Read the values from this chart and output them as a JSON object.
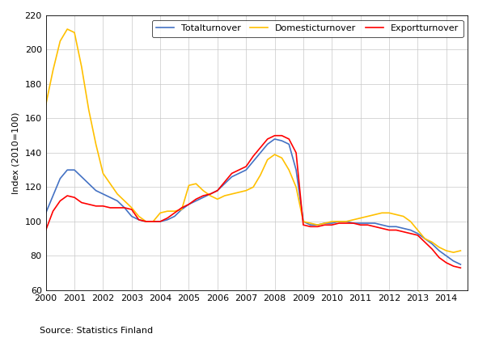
{
  "title": "",
  "ylabel": "Index (2010=100)",
  "source_text": "Source: Statistics Finland",
  "ylim": [
    60,
    220
  ],
  "yticks": [
    60,
    80,
    100,
    120,
    140,
    160,
    180,
    200,
    220
  ],
  "legend_labels": [
    "Totalturnover",
    "Domesticturnover",
    "Exportturnover"
  ],
  "colors": [
    "#4472C4",
    "#FFC000",
    "#FF0000"
  ],
  "total_turnover": {
    "x": [
      2000.0,
      2000.25,
      2000.5,
      2000.75,
      2001.0,
      2001.25,
      2001.5,
      2001.75,
      2002.0,
      2002.25,
      2002.5,
      2002.75,
      2003.0,
      2003.25,
      2003.5,
      2003.75,
      2004.0,
      2004.25,
      2004.5,
      2004.75,
      2005.0,
      2005.25,
      2005.5,
      2005.75,
      2006.0,
      2006.25,
      2006.5,
      2006.75,
      2007.0,
      2007.25,
      2007.5,
      2007.75,
      2008.0,
      2008.25,
      2008.5,
      2008.75,
      2009.0,
      2009.25,
      2009.5,
      2009.75,
      2010.0,
      2010.25,
      2010.5,
      2010.75,
      2011.0,
      2011.25,
      2011.5,
      2011.75,
      2012.0,
      2012.25,
      2012.5,
      2012.75,
      2013.0,
      2013.25,
      2013.5,
      2013.75,
      2014.0,
      2014.25,
      2014.5
    ],
    "y": [
      105,
      115,
      125,
      130,
      130,
      126,
      122,
      118,
      116,
      114,
      112,
      108,
      103,
      101,
      100,
      100,
      100,
      101,
      103,
      107,
      110,
      112,
      114,
      116,
      118,
      122,
      126,
      128,
      130,
      135,
      140,
      145,
      148,
      147,
      145,
      130,
      100,
      98,
      98,
      99,
      99,
      100,
      100,
      99,
      99,
      99,
      99,
      98,
      97,
      97,
      96,
      95,
      93,
      90,
      87,
      83,
      80,
      77,
      75
    ]
  },
  "domestic_turnover": {
    "x": [
      2000.0,
      2000.25,
      2000.5,
      2000.75,
      2001.0,
      2001.25,
      2001.5,
      2001.75,
      2002.0,
      2002.25,
      2002.5,
      2002.75,
      2003.0,
      2003.25,
      2003.5,
      2003.75,
      2004.0,
      2004.25,
      2004.5,
      2004.75,
      2005.0,
      2005.25,
      2005.5,
      2005.75,
      2006.0,
      2006.25,
      2006.5,
      2006.75,
      2007.0,
      2007.25,
      2007.5,
      2007.75,
      2008.0,
      2008.25,
      2008.5,
      2008.75,
      2009.0,
      2009.25,
      2009.5,
      2009.75,
      2010.0,
      2010.25,
      2010.5,
      2010.75,
      2011.0,
      2011.25,
      2011.5,
      2011.75,
      2012.0,
      2012.25,
      2012.5,
      2012.75,
      2013.0,
      2013.25,
      2013.5,
      2013.75,
      2014.0,
      2014.25,
      2014.5
    ],
    "y": [
      168,
      188,
      205,
      212,
      210,
      190,
      165,
      145,
      128,
      122,
      116,
      112,
      108,
      103,
      100,
      100,
      105,
      106,
      106,
      107,
      121,
      122,
      118,
      115,
      113,
      115,
      116,
      117,
      118,
      120,
      127,
      136,
      139,
      137,
      130,
      120,
      100,
      99,
      98,
      99,
      100,
      100,
      100,
      101,
      102,
      103,
      104,
      105,
      105,
      104,
      103,
      100,
      95,
      90,
      88,
      85,
      83,
      82,
      83
    ]
  },
  "export_turnover": {
    "x": [
      2000.0,
      2000.25,
      2000.5,
      2000.75,
      2001.0,
      2001.25,
      2001.5,
      2001.75,
      2002.0,
      2002.25,
      2002.5,
      2002.75,
      2003.0,
      2003.25,
      2003.5,
      2003.75,
      2004.0,
      2004.25,
      2004.5,
      2004.75,
      2005.0,
      2005.25,
      2005.5,
      2005.75,
      2006.0,
      2006.25,
      2006.5,
      2006.75,
      2007.0,
      2007.25,
      2007.5,
      2007.75,
      2008.0,
      2008.25,
      2008.5,
      2008.75,
      2009.0,
      2009.25,
      2009.5,
      2009.75,
      2010.0,
      2010.25,
      2010.5,
      2010.75,
      2011.0,
      2011.25,
      2011.5,
      2011.75,
      2012.0,
      2012.25,
      2012.5,
      2012.75,
      2013.0,
      2013.25,
      2013.5,
      2013.75,
      2014.0,
      2014.25,
      2014.5
    ],
    "y": [
      95,
      106,
      112,
      115,
      114,
      111,
      110,
      109,
      109,
      108,
      108,
      108,
      107,
      101,
      100,
      100,
      100,
      102,
      105,
      108,
      110,
      113,
      115,
      116,
      118,
      123,
      128,
      130,
      132,
      138,
      143,
      148,
      150,
      150,
      148,
      140,
      98,
      97,
      97,
      98,
      98,
      99,
      99,
      99,
      98,
      98,
      97,
      96,
      95,
      95,
      94,
      93,
      92,
      88,
      84,
      79,
      76,
      74,
      73
    ]
  },
  "xlim": [
    2000,
    2014.75
  ],
  "xticks": [
    2000,
    2001,
    2002,
    2003,
    2004,
    2005,
    2006,
    2007,
    2008,
    2009,
    2010,
    2011,
    2012,
    2013,
    2014
  ]
}
